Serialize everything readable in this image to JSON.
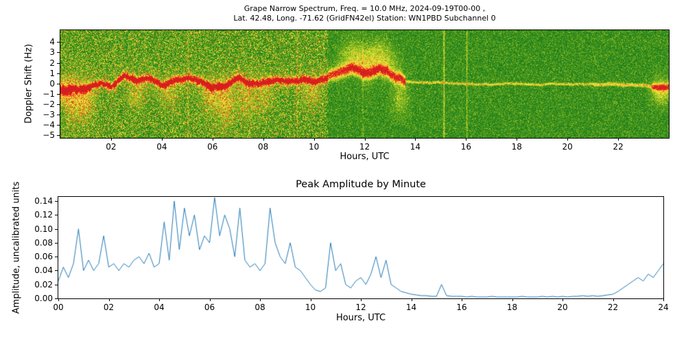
{
  "spectrogram": {
    "title_line1": "Grape Narrow Spectrum, Freq. = 10.0 MHz, 2024-09-19T00-00 ,",
    "title_line2": "Lat.  42.48, Long. -71.62 (GridFN42el) Station: WN1PBD Subchannel 0",
    "ylabel": "Doppler Shift (Hz)",
    "xlabel": "Hours, UTC",
    "x_range": [
      0,
      24
    ],
    "y_range": [
      -5.25,
      5.15
    ],
    "x_tick_values": [
      2,
      4,
      6,
      8,
      10,
      12,
      14,
      16,
      18,
      20,
      22
    ],
    "x_tick_labels": [
      "02",
      "04",
      "06",
      "08",
      "10",
      "12",
      "14",
      "16",
      "18",
      "20",
      "22"
    ],
    "y_tick_values": [
      4,
      3,
      2,
      1,
      0,
      -1,
      -2,
      -3,
      -4,
      -5
    ],
    "y_tick_labels": [
      "4",
      "3",
      "2",
      "1",
      "0",
      "−1",
      "−2",
      "−3",
      "−4",
      "−5"
    ]
  },
  "amplitude_chart": {
    "title": "Peak Amplitude by Minute",
    "ylabel": "Amplitude, uncalibrated units",
    "xlabel": "Hours, UTC",
    "x_range": [
      0,
      24
    ],
    "y_range": [
      0,
      0.146
    ],
    "x_tick_values": [
      0,
      2,
      4,
      6,
      8,
      10,
      12,
      14,
      16,
      18,
      20,
      22,
      24
    ],
    "x_tick_labels": [
      "00",
      "02",
      "04",
      "06",
      "08",
      "10",
      "12",
      "14",
      "16",
      "18",
      "20",
      "22",
      "24"
    ],
    "y_tick_values": [
      0.0,
      0.02,
      0.04,
      0.06,
      0.08,
      0.1,
      0.12,
      0.14
    ],
    "y_tick_labels": [
      "0.00",
      "0.02",
      "0.04",
      "0.06",
      "0.08",
      "0.10",
      "0.12",
      "0.14"
    ],
    "line_color": "#1f77b4"
  },
  "chart_data": [
    {
      "type": "heatmap",
      "title": "Grape Narrow Spectrum, Freq. = 10.0 MHz, 2024-09-19T00-00 , Lat. 42.48, Long. -71.62 (GridFN42el) Station: WN1PBD Subchannel 0",
      "xlabel": "Hours, UTC",
      "ylabel": "Doppler Shift (Hz)",
      "x_range": [
        0,
        24
      ],
      "y_range": [
        -5.25,
        5.15
      ],
      "colormap_low_to_high": [
        "#053c05",
        "#1e821e",
        "#5aa01e",
        "#aac823",
        "#f0f03c",
        "#ffc832",
        "#fa7828",
        "#d71e1e"
      ],
      "description": "Doppler spectrogram: speckled green noise background, strong red/yellow carrier trace wandering around 0 Hz (±1 Hz) from 00-10 UTC with downward yellow wisps to -3 Hz, yellow plumes rising to +2 Hz between 11-13 UTC, thin faint trace near 0 Hz 14-22 UTC over quiet dark-green background, trace brightening again after 23 UTC; bright vertical interference streaks near 15.1 and 16.0 UTC",
      "trace_hz_vs_hour": [
        [
          0,
          -0.6
        ],
        [
          0.5,
          -0.35
        ],
        [
          1,
          -0.5
        ],
        [
          1.5,
          0.0
        ],
        [
          2,
          -0.2
        ],
        [
          2.5,
          0.7
        ],
        [
          3,
          0.2
        ],
        [
          3.5,
          0.45
        ],
        [
          4,
          -0.1
        ],
        [
          4.5,
          0.25
        ],
        [
          5,
          0.5
        ],
        [
          5.5,
          0.2
        ],
        [
          6,
          -0.3
        ],
        [
          6.5,
          -0.1
        ],
        [
          7,
          0.4
        ],
        [
          7.5,
          0.1
        ],
        [
          8,
          0.0
        ],
        [
          8.5,
          0.35
        ],
        [
          9,
          0.15
        ],
        [
          9.5,
          0.45
        ],
        [
          10,
          0.3
        ],
        [
          10.5,
          0.6
        ],
        [
          11,
          1.1
        ],
        [
          11.5,
          1.6
        ],
        [
          12,
          0.9
        ],
        [
          12.4,
          1.3
        ],
        [
          12.8,
          1.0
        ],
        [
          13.2,
          0.6
        ],
        [
          13.6,
          0.3
        ],
        [
          14,
          0.1
        ],
        [
          15,
          0.05
        ],
        [
          16,
          0.0
        ],
        [
          17,
          0.0
        ],
        [
          18,
          -0.05
        ],
        [
          19,
          0.0
        ],
        [
          20,
          -0.05
        ],
        [
          21,
          0.0
        ],
        [
          22,
          -0.1
        ],
        [
          23,
          -0.15
        ],
        [
          23.6,
          -0.35
        ],
        [
          24,
          -0.3
        ]
      ],
      "wisps_down": [
        [
          0.15,
          -1.2,
          0.5
        ],
        [
          0.5,
          -3.2,
          0.3
        ],
        [
          1.0,
          -2.8,
          0.35
        ],
        [
          3.0,
          -1.8,
          0.25
        ],
        [
          4.3,
          -2.0,
          0.22
        ],
        [
          5.9,
          -2.2,
          0.3
        ],
        [
          6.5,
          -3.3,
          0.35
        ],
        [
          7.3,
          -2.6,
          0.3
        ],
        [
          8.0,
          -2.2,
          0.22
        ],
        [
          9.9,
          -1.8,
          0.25
        ],
        [
          13.4,
          -2.5,
          0.2
        ],
        [
          23.7,
          -1.3,
          0.45
        ]
      ],
      "vertical_streaks": [
        [
          2.15,
          0.18
        ],
        [
          5.02,
          0.28
        ],
        [
          9.33,
          0.28
        ],
        [
          11.92,
          0.15
        ],
        [
          15.12,
          0.5
        ],
        [
          16.02,
          0.3
        ]
      ],
      "noise": {
        "high_region_hours": [
          0,
          10.55
        ],
        "low_region_hours": [
          10.55,
          24
        ]
      }
    },
    {
      "type": "line",
      "title": "Peak Amplitude by Minute",
      "xlabel": "Hours, UTC",
      "ylabel": "Amplitude, uncalibrated units",
      "xlim": [
        0,
        24
      ],
      "ylim": [
        0,
        0.146
      ],
      "line_color": "#1f77b4",
      "x_start": 0,
      "x_step": 0.2,
      "values": [
        0.025,
        0.045,
        0.03,
        0.05,
        0.1,
        0.04,
        0.055,
        0.04,
        0.05,
        0.09,
        0.045,
        0.05,
        0.04,
        0.05,
        0.045,
        0.055,
        0.06,
        0.05,
        0.065,
        0.045,
        0.05,
        0.11,
        0.055,
        0.14,
        0.07,
        0.13,
        0.09,
        0.12,
        0.07,
        0.09,
        0.08,
        0.145,
        0.09,
        0.12,
        0.1,
        0.06,
        0.13,
        0.055,
        0.045,
        0.05,
        0.04,
        0.05,
        0.13,
        0.08,
        0.06,
        0.05,
        0.08,
        0.045,
        0.04,
        0.03,
        0.02,
        0.012,
        0.01,
        0.015,
        0.08,
        0.04,
        0.05,
        0.02,
        0.015,
        0.025,
        0.03,
        0.02,
        0.035,
        0.06,
        0.03,
        0.055,
        0.02,
        0.015,
        0.01,
        0.008,
        0.006,
        0.005,
        0.004,
        0.004,
        0.003,
        0.003,
        0.02,
        0.004,
        0.003,
        0.003,
        0.003,
        0.002,
        0.003,
        0.002,
        0.002,
        0.002,
        0.003,
        0.002,
        0.002,
        0.002,
        0.002,
        0.002,
        0.003,
        0.002,
        0.002,
        0.002,
        0.003,
        0.002,
        0.003,
        0.002,
        0.003,
        0.002,
        0.003,
        0.003,
        0.004,
        0.003,
        0.004,
        0.003,
        0.004,
        0.005,
        0.006,
        0.01,
        0.015,
        0.02,
        0.025,
        0.03,
        0.025,
        0.035,
        0.03,
        0.04,
        0.05
      ]
    }
  ]
}
